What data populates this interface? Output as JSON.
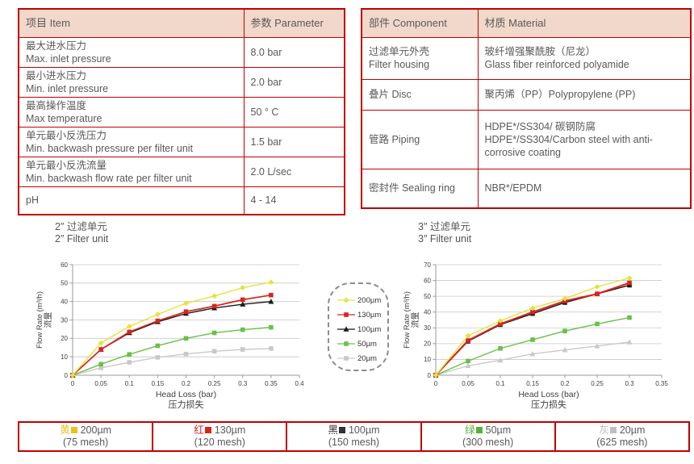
{
  "colors": {
    "table_border": "#c00000",
    "table_header_bg": "#f2d8ca",
    "body_text": "#595959"
  },
  "spec_table": {
    "headers": {
      "item": "项目 Item",
      "parameter": "参数 Parameter"
    },
    "rows": [
      {
        "item_cn": "最大进水压力",
        "item_en": "Max. inlet pressure",
        "value": "8.0 bar"
      },
      {
        "item_cn": "最小进水压力",
        "item_en": "Min. inlet pressure",
        "value": "2.0 bar"
      },
      {
        "item_cn": "最高操作温度",
        "item_en": "Max temperature",
        "value": "50 ° C"
      },
      {
        "item_cn": "单元最小反洗压力",
        "item_en": "Min. backwash pressure per filter unit",
        "value": "1.5 bar"
      },
      {
        "item_cn": "单元最小反洗流量",
        "item_en": "Min. backwash flow rate per filter unit",
        "value": "2.0 L/sec"
      },
      {
        "item_cn": "pH",
        "item_en": "",
        "value": "4 - 14"
      }
    ]
  },
  "material_table": {
    "headers": {
      "component": "部件 Component",
      "material": "材质 Material"
    },
    "rows": [
      {
        "component_cn": "过滤单元外壳",
        "component_en": "Filter housing",
        "material_cn": "玻纤增强聚酰胺（尼龙）",
        "material_en": "Glass fiber reinforced polyamide"
      },
      {
        "component_cn": "叠片 Disc",
        "component_en": "",
        "material_cn": "聚丙烯（PP）Polypropylene (PP)",
        "material_en": ""
      },
      {
        "component_cn": "管路 Piping",
        "component_en": "",
        "material_cn": "HDPE*/SS304/ 碳钢防腐",
        "material_en": "HDPE*/SS304/Carbon steel with anti-corrosive coating"
      },
      {
        "component_cn": "密封件 Sealing ring",
        "component_en": "",
        "material_cn": "NBR*/EPDM",
        "material_en": ""
      }
    ]
  },
  "chart_data": [
    {
      "type": "line",
      "title_cn": "2″ 过滤单元",
      "title_en": "2″ Filter unit",
      "xlabel_en": "Head Loss (bar)",
      "xlabel_cn": "压力损失",
      "ylabel_cn": "流量",
      "ylabel_en": "Flow Rate (m³/h)",
      "xlim": [
        0,
        0.4
      ],
      "ylim": [
        0,
        60
      ],
      "xticks": [
        0,
        0.05,
        0.1,
        0.15,
        0.2,
        0.25,
        0.3,
        0.35,
        0.4
      ],
      "yticks": [
        0,
        10,
        20,
        30,
        40,
        50,
        60
      ],
      "grid": true,
      "legend_position": "external-right",
      "x": [
        0,
        0.05,
        0.1,
        0.15,
        0.2,
        0.25,
        0.3,
        0.35
      ],
      "series": [
        {
          "name": "200µm",
          "color": "#e7e23b",
          "marker": "diamond",
          "lw": 1.4,
          "values": [
            0,
            17.5,
            26.5,
            33,
            39,
            43,
            47.5,
            50.5
          ]
        },
        {
          "name": "130µm",
          "color": "#d9251d",
          "marker": "square",
          "lw": 1.7,
          "values": [
            0,
            14,
            23.5,
            29.5,
            34.5,
            37.5,
            41,
            43.5
          ]
        },
        {
          "name": "100µm",
          "color": "#1a1a1a",
          "marker": "triangle",
          "lw": 1.4,
          "values": [
            0,
            14,
            23,
            29,
            33.5,
            36.5,
            38.5,
            40
          ]
        },
        {
          "name": "50µm",
          "color": "#6bbf4a",
          "marker": "square",
          "lw": 1.4,
          "values": [
            0,
            6,
            11.3,
            16,
            20,
            23,
            24.7,
            26
          ]
        },
        {
          "name": "20µm",
          "color": "#c9c9c9",
          "marker": "square",
          "lw": 1.4,
          "values": [
            0,
            4,
            7,
            9.7,
            11.5,
            13,
            14,
            14.5
          ]
        }
      ]
    },
    {
      "type": "line",
      "title_cn": "3″ 过滤单元",
      "title_en": "3″ Filter unit",
      "xlabel_en": "Head Loss (bar)",
      "xlabel_cn": "压力损失",
      "ylabel_cn": "流量",
      "ylabel_en": "Flow Rate (m³/h)",
      "xlim": [
        0,
        0.35
      ],
      "ylim": [
        0,
        70
      ],
      "xticks": [
        0,
        0.05,
        0.1,
        0.15,
        0.2,
        0.25,
        0.3,
        0.35
      ],
      "yticks": [
        0,
        10,
        20,
        30,
        40,
        50,
        60,
        70
      ],
      "grid": true,
      "legend_position": "external-left",
      "x": [
        0,
        0.05,
        0.1,
        0.15,
        0.2,
        0.25,
        0.3
      ],
      "series": [
        {
          "name": "200µm",
          "color": "#e7e23b",
          "marker": "diamond",
          "lw": 1.4,
          "values": [
            0,
            25,
            34.5,
            42.5,
            48.5,
            56,
            61.5
          ]
        },
        {
          "name": "130µm",
          "color": "#d9251d",
          "marker": "square",
          "lw": 2.0,
          "values": [
            0,
            22,
            32.5,
            40,
            47,
            51.5,
            58.5
          ]
        },
        {
          "name": "100µm",
          "color": "#1a1a1a",
          "marker": "square",
          "lw": 1.4,
          "values": [
            0,
            21.5,
            32,
            39,
            46,
            51.5,
            57
          ]
        },
        {
          "name": "50µm",
          "color": "#6bbf4a",
          "marker": "square",
          "lw": 1.4,
          "values": [
            0,
            9,
            17,
            22.5,
            28,
            32.5,
            36.5
          ]
        },
        {
          "name": "20µm",
          "color": "#c9c9c9",
          "marker": "triangle",
          "lw": 1.4,
          "values": [
            0,
            6,
            9.5,
            13.5,
            16,
            18.5,
            21
          ]
        }
      ]
    }
  ],
  "legend_box": {
    "entries": [
      {
        "label": "200µm",
        "marker": "diamond",
        "color": "#e7e23b"
      },
      {
        "label": "130µm",
        "marker": "square",
        "color": "#d9251d"
      },
      {
        "label": "100µm",
        "marker": "triangle",
        "color": "#1a1a1a"
      },
      {
        "label": "50µm",
        "marker": "square",
        "color": "#6bbf4a"
      },
      {
        "label": "20µm",
        "marker": "square",
        "color": "#c9c9c9"
      }
    ]
  },
  "mesh_table": {
    "cells": [
      {
        "color_name": "黄",
        "size": "200µm",
        "mesh": "(75 mesh)",
        "color": "#e7c41f"
      },
      {
        "color_name": "红",
        "size": "130µm",
        "mesh": "(120 mesh)",
        "color": "#d9251d"
      },
      {
        "color_name": "黑",
        "size": "100µm",
        "mesh": "(150 mesh)",
        "color": "#333333"
      },
      {
        "color_name": "绿",
        "size": "50µm",
        "mesh": "(300 mesh)",
        "color": "#55b13c"
      },
      {
        "color_name": "灰",
        "size": "20µm",
        "mesh": "(625 mesh)",
        "color": "#bfbfbf"
      }
    ]
  }
}
